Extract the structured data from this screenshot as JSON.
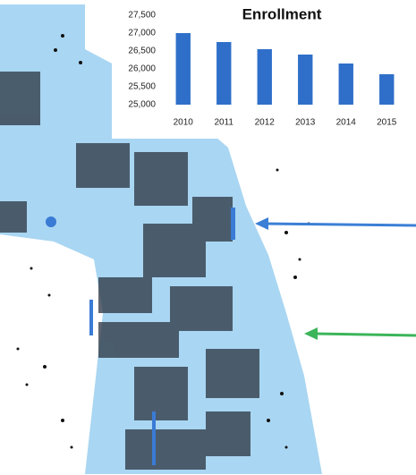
{
  "chart_data": {
    "type": "bar",
    "title": "Enrollment",
    "categories": [
      "2010",
      "2011",
      "2012",
      "2013",
      "2014",
      "2015"
    ],
    "values": [
      27000,
      26750,
      26550,
      26400,
      26150,
      25850
    ],
    "color": "#2f6fc9",
    "ylim": [
      25000,
      27500
    ],
    "yticks": [
      {
        "value": 25000,
        "label": "25,000"
      },
      {
        "value": 25500,
        "label": "25,500"
      },
      {
        "value": 26000,
        "label": "26,000"
      },
      {
        "value": 26500,
        "label": "26,500"
      },
      {
        "value": 27000,
        "label": "27,000"
      },
      {
        "value": 27500,
        "label": "27,500"
      }
    ],
    "grid": false
  }
}
